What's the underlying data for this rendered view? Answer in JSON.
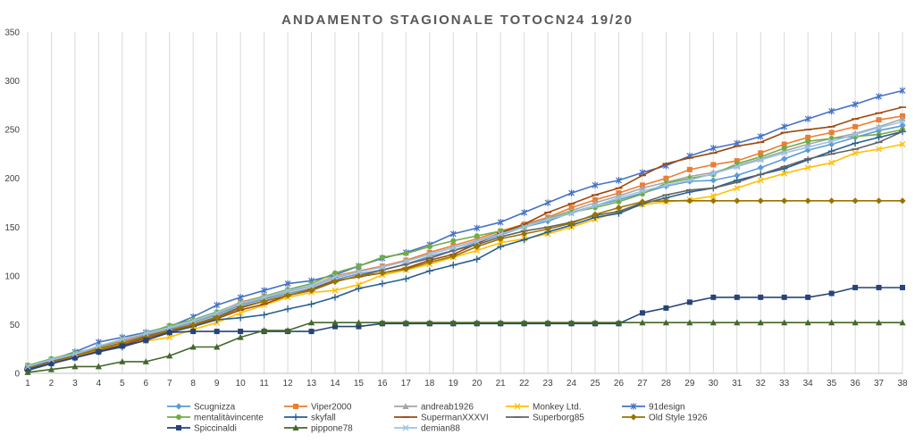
{
  "chart_data": {
    "type": "line",
    "title": "ANDAMENTO STAGIONALE TOTOCN24 19/20",
    "xlabel": "",
    "ylabel": "",
    "ylim": [
      0,
      350
    ],
    "yticks": [
      0,
      50,
      100,
      150,
      200,
      250,
      300,
      350
    ],
    "x": [
      1,
      2,
      3,
      4,
      5,
      6,
      7,
      8,
      9,
      10,
      11,
      12,
      13,
      14,
      15,
      16,
      17,
      18,
      19,
      20,
      21,
      22,
      23,
      24,
      25,
      26,
      27,
      28,
      29,
      30,
      31,
      32,
      33,
      34,
      35,
      36,
      37,
      38
    ],
    "grid": "vertical",
    "legend": "bottom",
    "series": [
      {
        "name": "Scugnizza",
        "color": "#5B9BD5",
        "marker": "diamond",
        "values": [
          6,
          13,
          19,
          26,
          33,
          39,
          45,
          52,
          60,
          70,
          76,
          82,
          87,
          96,
          102,
          106,
          112,
          120,
          126,
          134,
          142,
          150,
          156,
          165,
          172,
          178,
          185,
          192,
          197,
          198,
          203,
          211,
          220,
          229,
          235,
          242,
          249,
          254
        ]
      },
      {
        "name": "Viper2000",
        "color": "#ED7D31",
        "marker": "square",
        "values": [
          8,
          14,
          20,
          27,
          33,
          40,
          46,
          54,
          62,
          73,
          79,
          85,
          90,
          100,
          105,
          110,
          116,
          124,
          131,
          138,
          146,
          153,
          160,
          170,
          178,
          185,
          193,
          200,
          209,
          214,
          218,
          226,
          235,
          242,
          247,
          253,
          260,
          264
        ]
      },
      {
        "name": "andreab1926",
        "color": "#A5A5A5",
        "marker": "triangle",
        "values": [
          7,
          13,
          19,
          26,
          32,
          39,
          46,
          53,
          61,
          71,
          77,
          84,
          89,
          98,
          104,
          109,
          115,
          122,
          129,
          136,
          144,
          152,
          159,
          167,
          175,
          182,
          190,
          196,
          202,
          206,
          213,
          220,
          228,
          235,
          241,
          246,
          253,
          261
        ]
      },
      {
        "name": "Monkey Ltd.",
        "color": "#FFC000",
        "marker": "x",
        "values": [
          5,
          11,
          17,
          24,
          29,
          33,
          37,
          45,
          52,
          62,
          70,
          78,
          83,
          85,
          91,
          101,
          106,
          112,
          119,
          126,
          134,
          138,
          143,
          150,
          158,
          166,
          173,
          176,
          178,
          182,
          190,
          198,
          205,
          211,
          216,
          226,
          230,
          235
        ]
      },
      {
        "name": "91design",
        "color": "#4472C4",
        "marker": "star",
        "values": [
          5,
          14,
          22,
          32,
          37,
          42,
          48,
          58,
          70,
          78,
          85,
          92,
          95,
          101,
          110,
          118,
          124,
          132,
          143,
          149,
          155,
          165,
          175,
          185,
          193,
          198,
          206,
          213,
          223,
          231,
          236,
          243,
          253,
          261,
          269,
          276,
          284,
          290
        ]
      },
      {
        "name": "mentalitàvincente",
        "color": "#70AD47",
        "marker": "circle",
        "values": [
          8,
          15,
          21,
          27,
          35,
          41,
          49,
          55,
          63,
          72,
          79,
          86,
          92,
          103,
          110,
          119,
          123,
          130,
          136,
          141,
          146,
          150,
          158,
          165,
          170,
          176,
          184,
          195,
          200,
          204,
          215,
          222,
          231,
          238,
          241,
          243,
          245,
          250
        ]
      },
      {
        "name": "skyfall",
        "color": "#255E91",
        "marker": "plus",
        "values": [
          3,
          10,
          16,
          22,
          27,
          34,
          42,
          48,
          55,
          57,
          60,
          66,
          71,
          78,
          87,
          92,
          97,
          105,
          111,
          117,
          130,
          137,
          145,
          152,
          160,
          164,
          174,
          180,
          186,
          190,
          198,
          204,
          210,
          219,
          228,
          236,
          242,
          248
        ]
      },
      {
        "name": "SupermanXXXVI",
        "color": "#9E480E",
        "marker": "dash",
        "values": [
          4,
          11,
          16,
          23,
          29,
          36,
          43,
          49,
          56,
          65,
          71,
          80,
          86,
          95,
          99,
          103,
          108,
          116,
          122,
          133,
          144,
          153,
          165,
          174,
          183,
          190,
          203,
          215,
          221,
          226,
          233,
          237,
          247,
          250,
          253,
          261,
          267,
          273
        ]
      },
      {
        "name": "Superborg85",
        "color": "#636363",
        "marker": "dash",
        "values": [
          5,
          12,
          18,
          25,
          31,
          38,
          44,
          50,
          58,
          68,
          74,
          80,
          85,
          94,
          100,
          106,
          112,
          118,
          126,
          132,
          140,
          146,
          150,
          155,
          162,
          166,
          175,
          183,
          188,
          190,
          196,
          204,
          212,
          220,
          225,
          230,
          237,
          248
        ]
      },
      {
        "name": "Old Style 1926",
        "color": "#997300",
        "marker": "diamond",
        "values": [
          5,
          11,
          18,
          25,
          31,
          37,
          44,
          50,
          57,
          67,
          74,
          80,
          85,
          94,
          100,
          103,
          107,
          114,
          120,
          130,
          138,
          143,
          148,
          154,
          163,
          170,
          176,
          177,
          177,
          177,
          177,
          177,
          177,
          177,
          177,
          177,
          177,
          177
        ]
      },
      {
        "name": "Spiccinaldi",
        "color": "#264478",
        "marker": "square",
        "values": [
          4,
          10,
          16,
          22,
          28,
          34,
          42,
          43,
          43,
          43,
          43,
          43,
          43,
          48,
          48,
          51,
          51,
          51,
          51,
          51,
          51,
          51,
          51,
          51,
          51,
          51,
          62,
          67,
          73,
          78,
          78,
          78,
          78,
          78,
          82,
          88,
          88,
          88
        ]
      },
      {
        "name": "pippone78",
        "color": "#43682B",
        "marker": "triangle",
        "values": [
          1,
          4,
          7,
          7,
          12,
          12,
          18,
          27,
          27,
          37,
          44,
          44,
          52,
          52,
          52,
          52,
          52,
          52,
          52,
          52,
          52,
          52,
          52,
          52,
          52,
          52,
          52,
          52,
          52,
          52,
          52,
          52,
          52,
          52,
          52,
          52,
          52,
          52
        ]
      },
      {
        "name": "demian88",
        "color": "#9DC3E6",
        "marker": "x",
        "values": [
          7,
          14,
          20,
          28,
          35,
          41,
          47,
          54,
          62,
          72,
          78,
          85,
          90,
          99,
          104,
          109,
          115,
          122,
          129,
          135,
          143,
          150,
          158,
          164,
          172,
          180,
          187,
          193,
          198,
          205,
          212,
          219,
          226,
          232,
          238,
          245,
          252,
          258
        ]
      }
    ]
  }
}
